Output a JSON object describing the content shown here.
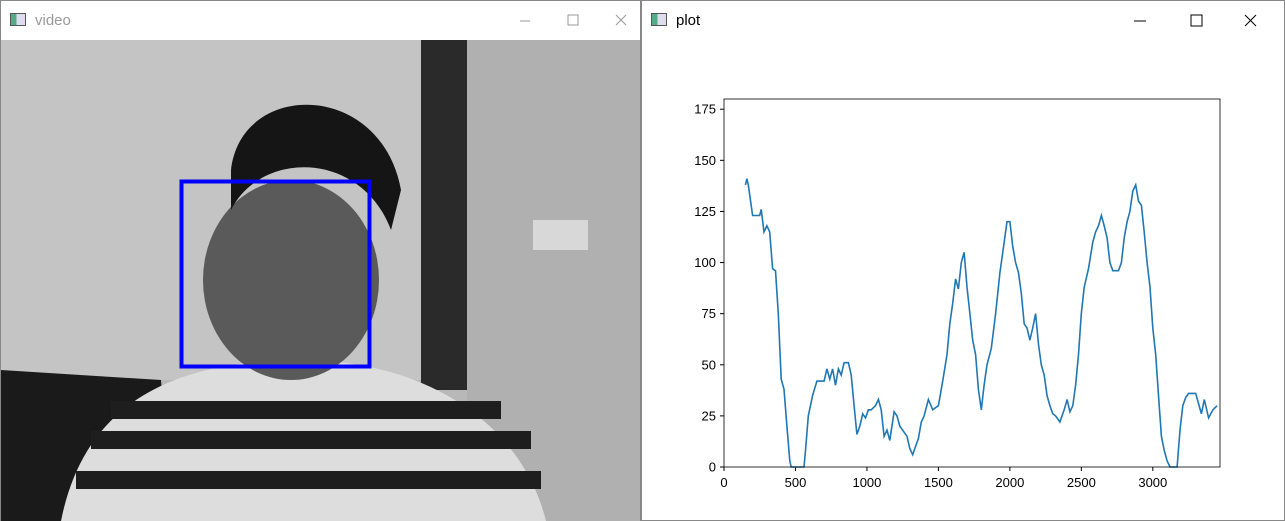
{
  "windows": [
    {
      "title": "video"
    },
    {
      "title": "plot"
    }
  ],
  "chart_data": {
    "type": "line",
    "color": "#1f77b4",
    "x": [
      150,
      160,
      170,
      200,
      250,
      260,
      280,
      300,
      320,
      340,
      360,
      380,
      400,
      420,
      440,
      460,
      470,
      560,
      570,
      590,
      620,
      650,
      700,
      720,
      740,
      760,
      780,
      800,
      820,
      840,
      870,
      890,
      910,
      930,
      950,
      970,
      990,
      1010,
      1030,
      1060,
      1080,
      1100,
      1120,
      1140,
      1160,
      1190,
      1210,
      1230,
      1250,
      1280,
      1300,
      1320,
      1340,
      1360,
      1380,
      1400,
      1430,
      1460,
      1500,
      1530,
      1560,
      1580,
      1600,
      1620,
      1640,
      1660,
      1680,
      1700,
      1720,
      1740,
      1760,
      1780,
      1800,
      1820,
      1840,
      1870,
      1900,
      1930,
      1960,
      1980,
      2000,
      2020,
      2040,
      2060,
      2080,
      2100,
      2120,
      2140,
      2160,
      2180,
      2200,
      2220,
      2240,
      2260,
      2280,
      2300,
      2320,
      2350,
      2380,
      2400,
      2420,
      2440,
      2460,
      2480,
      2500,
      2520,
      2550,
      2580,
      2600,
      2620,
      2640,
      2660,
      2680,
      2700,
      2720,
      2760,
      2780,
      2800,
      2820,
      2840,
      2860,
      2880,
      2900,
      2920,
      2940,
      2960,
      2980,
      3000,
      3020,
      3040,
      3060,
      3080,
      3100,
      3120,
      3170,
      3190,
      3210,
      3230,
      3250,
      3300,
      3340,
      3360,
      3390,
      3420,
      3450
    ],
    "values": [
      138,
      141,
      138,
      123,
      123,
      126,
      115,
      118,
      115,
      97,
      96,
      75,
      43,
      38,
      20,
      3,
      0,
      0,
      8,
      25,
      35,
      42,
      42,
      48,
      43,
      48,
      40,
      48,
      45,
      51,
      51,
      45,
      30,
      16,
      20,
      26,
      24,
      28,
      28,
      30,
      33,
      28,
      15,
      18,
      13,
      27,
      25,
      20,
      18,
      15,
      9,
      6,
      10,
      14,
      22,
      25,
      33,
      28,
      30,
      42,
      55,
      70,
      80,
      92,
      87,
      100,
      105,
      88,
      75,
      62,
      55,
      38,
      28,
      40,
      50,
      58,
      75,
      95,
      110,
      120,
      120,
      108,
      100,
      95,
      85,
      70,
      68,
      62,
      68,
      75,
      60,
      50,
      45,
      35,
      30,
      26,
      25,
      22,
      28,
      33,
      27,
      30,
      40,
      55,
      75,
      88,
      97,
      110,
      115,
      118,
      123,
      118,
      112,
      100,
      96,
      96,
      100,
      112,
      120,
      125,
      135,
      138,
      130,
      128,
      115,
      100,
      88,
      68,
      55,
      35,
      15,
      8,
      3,
      0,
      0,
      18,
      30,
      34,
      36,
      36,
      26,
      33,
      24,
      28,
      30
    ],
    "xlim": [
      0,
      3470
    ],
    "ylim": [
      0,
      180
    ],
    "xticks": [
      0,
      500,
      1000,
      1500,
      2000,
      2500,
      3000
    ],
    "yticks": [
      0,
      25,
      50,
      75,
      100,
      125,
      150,
      175
    ]
  }
}
